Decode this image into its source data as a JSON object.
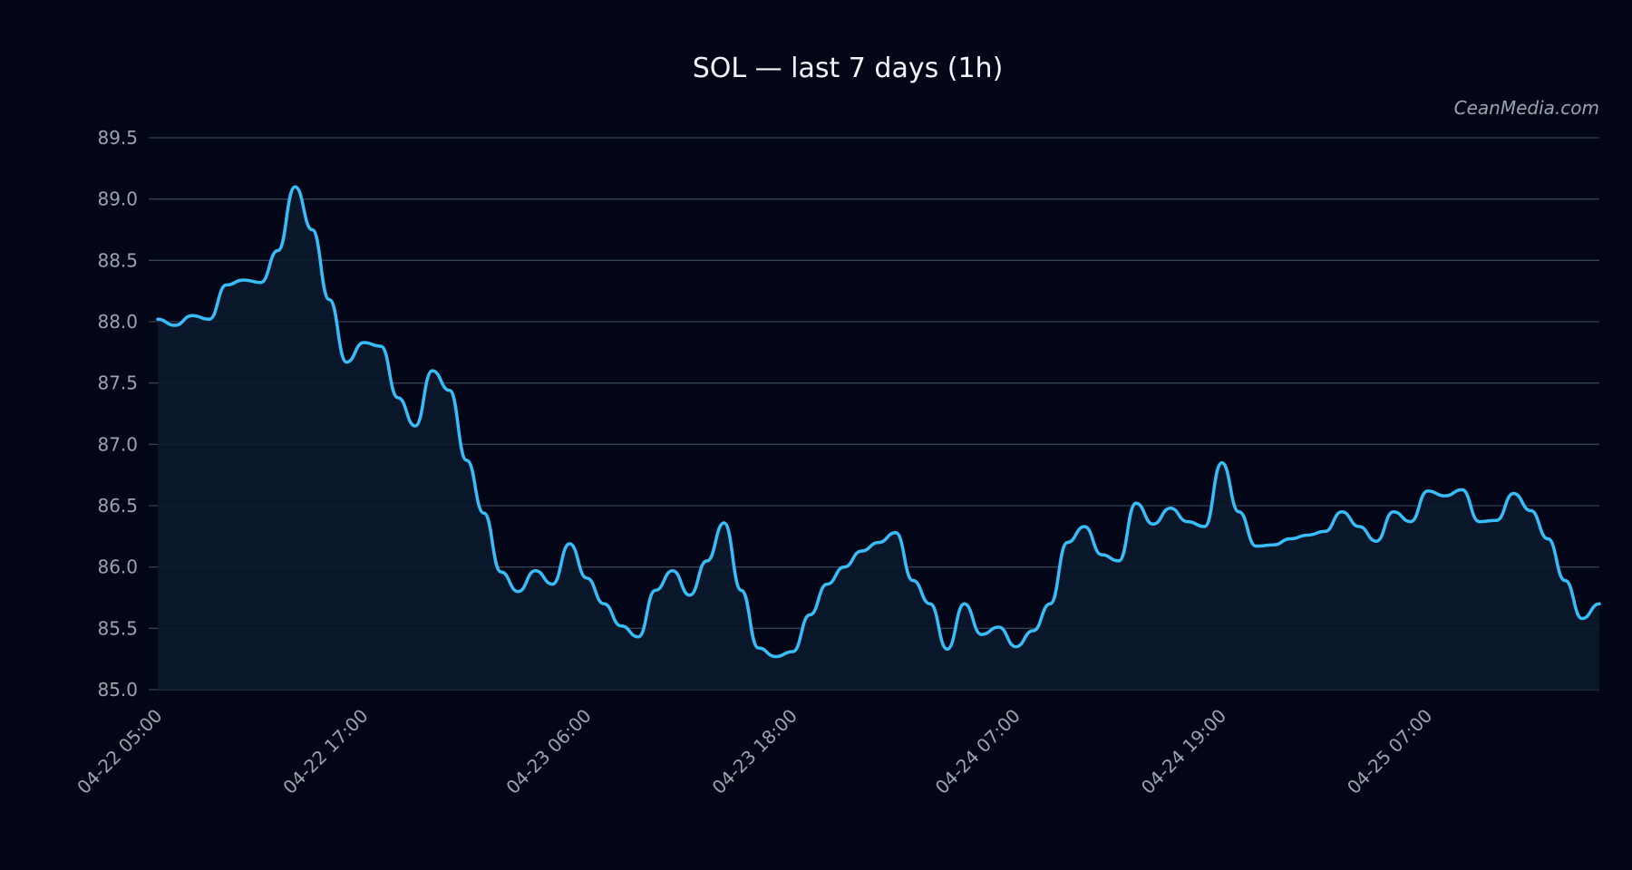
{
  "chart_data": {
    "type": "line",
    "title": "SOL — last 7 days (1h)",
    "watermark": "CeanMedia.com",
    "xlabel": "",
    "ylabel": "",
    "ylim": [
      85.0,
      89.5
    ],
    "yticks": [
      "85.0",
      "85.5",
      "86.0",
      "86.5",
      "87.0",
      "87.5",
      "88.0",
      "88.5",
      "89.0",
      "89.5"
    ],
    "xticks": [
      "04-22 05:00",
      "04-22 17:00",
      "04-23 06:00",
      "04-23 18:00",
      "04-24 07:00",
      "04-24 19:00",
      "04-25 07:00"
    ],
    "grid": true,
    "line_color": "#38bdf8",
    "background": "#020617",
    "series": [
      {
        "x": [
          "04-22 05:00",
          "04-22 06:00",
          "04-22 07:00",
          "04-22 08:00",
          "04-22 09:00",
          "04-22 10:00",
          "04-22 11:00",
          "04-22 12:00",
          "04-22 13:00",
          "04-22 14:00",
          "04-22 15:00",
          "04-22 16:00",
          "04-22 17:00",
          "04-22 18:00",
          "04-22 19:00",
          "04-22 20:00",
          "04-22 21:00",
          "04-22 22:00",
          "04-22 23:00",
          "04-23 00:00",
          "04-23 01:00",
          "04-23 02:00",
          "04-23 03:00",
          "04-23 04:00",
          "04-23 05:00",
          "04-23 06:00",
          "04-23 07:00",
          "04-23 08:00",
          "04-23 09:00",
          "04-23 10:00",
          "04-23 11:00",
          "04-23 12:00",
          "04-23 13:00",
          "04-23 14:00",
          "04-23 15:00",
          "04-23 16:00",
          "04-23 17:00",
          "04-23 18:00",
          "04-23 19:00",
          "04-23 20:00",
          "04-23 21:00",
          "04-23 22:00",
          "04-23 23:00",
          "04-24 00:00",
          "04-24 01:00",
          "04-24 02:00",
          "04-24 03:00",
          "04-24 04:00",
          "04-24 05:00",
          "04-24 06:00",
          "04-24 07:00",
          "04-24 08:00",
          "04-24 09:00",
          "04-24 10:00",
          "04-24 11:00",
          "04-24 12:00",
          "04-24 13:00",
          "04-24 14:00",
          "04-24 15:00",
          "04-24 16:00",
          "04-24 17:00",
          "04-24 18:00",
          "04-24 19:00",
          "04-24 20:00",
          "04-24 21:00",
          "04-24 22:00",
          "04-24 23:00",
          "04-25 00:00",
          "04-25 01:00",
          "04-25 02:00",
          "04-25 03:00",
          "04-25 04:00",
          "04-25 05:00",
          "04-25 06:00",
          "04-25 07:00",
          "04-25 08:00",
          "04-25 09:00",
          "04-25 10:00",
          "04-25 11:00",
          "04-25 12:00",
          "04-25 13:00",
          "04-25 14:00",
          "04-25 15:00",
          "04-25 16:00",
          "04-25 17:00"
        ],
        "values": [
          88.02,
          87.97,
          88.05,
          88.02,
          88.3,
          88.34,
          88.32,
          88.58,
          89.1,
          88.75,
          88.18,
          87.67,
          87.83,
          87.8,
          87.38,
          87.15,
          87.6,
          87.44,
          86.87,
          86.44,
          85.96,
          85.8,
          85.97,
          85.86,
          86.19,
          85.91,
          85.7,
          85.52,
          85.43,
          85.81,
          85.97,
          85.77,
          86.05,
          86.36,
          85.81,
          85.34,
          85.27,
          85.31,
          85.61,
          85.86,
          86.0,
          86.13,
          86.2,
          86.28,
          85.89,
          85.7,
          85.33,
          85.7,
          85.45,
          85.51,
          85.35,
          85.48,
          85.7,
          86.2,
          86.33,
          86.1,
          86.05,
          86.52,
          86.35,
          86.48,
          86.37,
          86.33,
          86.85,
          86.45,
          86.17,
          86.18,
          86.23,
          86.26,
          86.29,
          86.45,
          86.33,
          86.21,
          86.45,
          86.37,
          86.62,
          86.58,
          86.63,
          86.37,
          86.38,
          86.6,
          86.46,
          86.23,
          85.89,
          85.58,
          85.7
        ]
      }
    ]
  }
}
